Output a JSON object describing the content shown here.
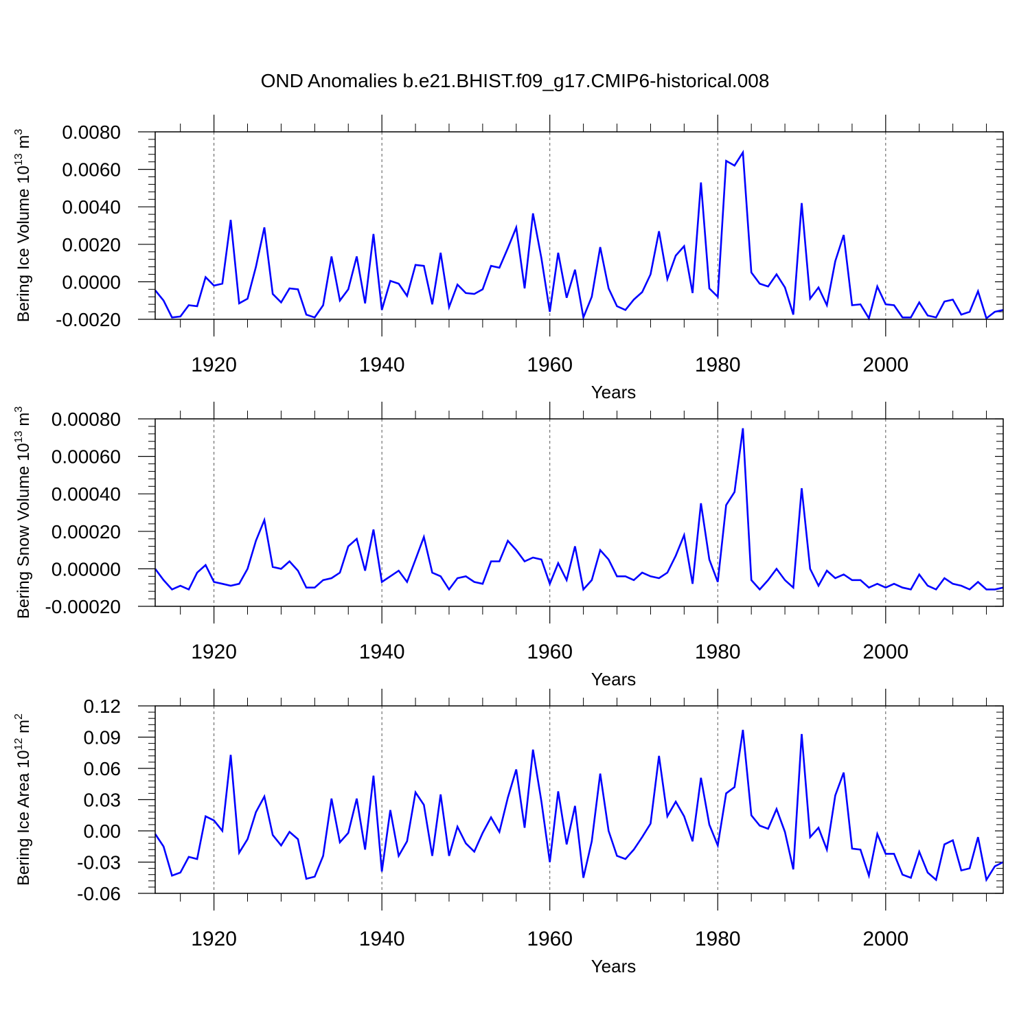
{
  "figure_title": "OND Anomalies b.e21.BHIST.f09_g17.CMIP6-historical.008",
  "line_color": "#0000ff",
  "chart_data": [
    {
      "type": "line",
      "ylabel": "Bering Ice Volume 10",
      "ylabel_exp": "13",
      "ylabel_unit": " m",
      "ylabel_unit_exp": "3",
      "xlabel": "Years",
      "xlim": [
        1913,
        2014
      ],
      "ylim": [
        -0.002,
        0.008
      ],
      "x_ticks": [
        1920,
        1940,
        1960,
        1980,
        2000
      ],
      "x_tick_labels": [
        "1920",
        "1940",
        "1960",
        "1980",
        "2000"
      ],
      "y_ticks": [
        -0.002,
        0.0,
        0.002,
        0.004,
        0.006,
        0.008
      ],
      "y_tick_labels": [
        "-0.0020",
        "0.0000",
        "0.0020",
        "0.0040",
        "0.0060",
        "0.0080"
      ],
      "grid": "dashed vertical at major x ticks",
      "x": [
        1913,
        1914,
        1915,
        1916,
        1917,
        1918,
        1919,
        1920,
        1921,
        1922,
        1923,
        1924,
        1925,
        1926,
        1927,
        1928,
        1929,
        1930,
        1931,
        1932,
        1933,
        1934,
        1935,
        1936,
        1937,
        1938,
        1939,
        1940,
        1941,
        1942,
        1943,
        1944,
        1945,
        1946,
        1947,
        1948,
        1949,
        1950,
        1951,
        1952,
        1953,
        1954,
        1955,
        1956,
        1957,
        1958,
        1959,
        1960,
        1961,
        1962,
        1963,
        1964,
        1965,
        1966,
        1967,
        1968,
        1969,
        1970,
        1971,
        1972,
        1973,
        1974,
        1975,
        1976,
        1977,
        1978,
        1979,
        1980,
        1981,
        1982,
        1983,
        1984,
        1985,
        1986,
        1987,
        1988,
        1989,
        1990,
        1991,
        1992,
        1993,
        1994,
        1995,
        1996,
        1997,
        1998,
        1999,
        2000,
        2001,
        2002,
        2003,
        2004,
        2005,
        2006,
        2007,
        2008,
        2009,
        2010,
        2011,
        2012,
        2013,
        2014
      ],
      "values": [
        -0.00045,
        -0.001,
        -0.0019,
        -0.00185,
        -0.00125,
        -0.0013,
        0.00025,
        -0.0002,
        -0.0001,
        0.0033,
        -0.00115,
        -0.0009,
        0.0008,
        0.0029,
        -0.00065,
        -0.0011,
        -0.00035,
        -0.0004,
        -0.00175,
        -0.0019,
        -0.00125,
        0.00135,
        -0.001,
        -0.0004,
        0.00135,
        -0.00115,
        0.00255,
        -0.0015,
        5e-05,
        -0.0001,
        -0.00075,
        0.0009,
        0.00085,
        -0.0012,
        0.00155,
        -0.00135,
        -0.00015,
        -0.0006,
        -0.00065,
        -0.0004,
        0.00085,
        0.00075,
        0.0018,
        0.0029,
        -0.00035,
        0.00365,
        0.00125,
        -0.0016,
        0.00155,
        -0.00085,
        0.00065,
        -0.0019,
        -0.0008,
        0.00185,
        -0.00035,
        -0.0013,
        -0.0015,
        -0.00095,
        -0.00055,
        0.0004,
        0.0027,
        0.00015,
        0.0014,
        0.0019,
        -0.0006,
        0.0053,
        -0.00035,
        -0.0008,
        0.00645,
        0.0062,
        0.0069,
        0.0005,
        -0.0001,
        -0.00025,
        0.0004,
        -0.0003,
        -0.00175,
        0.0042,
        -0.0009,
        -0.0003,
        -0.00125,
        0.0011,
        0.0025,
        -0.00125,
        -0.0012,
        -0.00195,
        -0.00025,
        -0.0012,
        -0.00125,
        -0.0019,
        -0.0019,
        -0.0011,
        -0.0018,
        -0.0019,
        -0.00105,
        -0.00095,
        -0.00175,
        -0.0016,
        -0.0005,
        -0.00195,
        -0.0016,
        -0.0015
      ]
    },
    {
      "type": "line",
      "ylabel": "Bering Snow Volume 10",
      "ylabel_exp": "13",
      "ylabel_unit": " m",
      "ylabel_unit_exp": "3",
      "xlabel": "Years",
      "xlim": [
        1913,
        2014
      ],
      "ylim": [
        -0.0002,
        0.0008
      ],
      "x_ticks": [
        1920,
        1940,
        1960,
        1980,
        2000
      ],
      "x_tick_labels": [
        "1920",
        "1940",
        "1960",
        "1980",
        "2000"
      ],
      "y_ticks": [
        -0.0002,
        0.0,
        0.0002,
        0.0004,
        0.0006,
        0.0008
      ],
      "y_tick_labels": [
        "-0.00020",
        "0.00000",
        "0.00020",
        "0.00040",
        "0.00060",
        "0.00080"
      ],
      "grid": "dashed vertical at major x ticks",
      "x": [
        1913,
        1914,
        1915,
        1916,
        1917,
        1918,
        1919,
        1920,
        1921,
        1922,
        1923,
        1924,
        1925,
        1926,
        1927,
        1928,
        1929,
        1930,
        1931,
        1932,
        1933,
        1934,
        1935,
        1936,
        1937,
        1938,
        1939,
        1940,
        1941,
        1942,
        1943,
        1944,
        1945,
        1946,
        1947,
        1948,
        1949,
        1950,
        1951,
        1952,
        1953,
        1954,
        1955,
        1956,
        1957,
        1958,
        1959,
        1960,
        1961,
        1962,
        1963,
        1964,
        1965,
        1966,
        1967,
        1968,
        1969,
        1970,
        1971,
        1972,
        1973,
        1974,
        1975,
        1976,
        1977,
        1978,
        1979,
        1980,
        1981,
        1982,
        1983,
        1984,
        1985,
        1986,
        1987,
        1988,
        1989,
        1990,
        1991,
        1992,
        1993,
        1994,
        1995,
        1996,
        1997,
        1998,
        1999,
        2000,
        2001,
        2002,
        2003,
        2004,
        2005,
        2006,
        2007,
        2008,
        2009,
        2010,
        2011,
        2012,
        2013,
        2014
      ],
      "values": [
        0.0,
        -6e-05,
        -0.00011,
        -9e-05,
        -0.00011,
        -2e-05,
        2e-05,
        -7e-05,
        -8e-05,
        -9e-05,
        -8e-05,
        0.0,
        0.00015,
        0.00026,
        1e-05,
        0.0,
        4e-05,
        -1e-05,
        -0.0001,
        -0.0001,
        -6e-05,
        -5e-05,
        -2e-05,
        0.00012,
        0.00016,
        -1e-05,
        0.00021,
        -7e-05,
        -4e-05,
        -1e-05,
        -7e-05,
        5e-05,
        0.00017,
        -2e-05,
        -4e-05,
        -0.00011,
        -5e-05,
        -4e-05,
        -7e-05,
        -8e-05,
        4e-05,
        4e-05,
        0.00015,
        0.0001,
        4e-05,
        6e-05,
        5e-05,
        -8e-05,
        3e-05,
        -6e-05,
        0.00012,
        -0.00011,
        -6e-05,
        0.0001,
        5e-05,
        -4e-05,
        -4e-05,
        -6e-05,
        -2e-05,
        -4e-05,
        -5e-05,
        -2e-05,
        7e-05,
        0.00018,
        -8e-05,
        0.00035,
        5e-05,
        -7e-05,
        0.00034,
        0.00041,
        0.00075,
        -6e-05,
        -0.00011,
        -6e-05,
        0.0,
        -6e-05,
        -0.0001,
        0.00043,
        0.0,
        -9e-05,
        -1e-05,
        -5e-05,
        -3e-05,
        -6e-05,
        -6e-05,
        -0.0001,
        -8e-05,
        -0.0001,
        -8e-05,
        -0.0001,
        -0.00011,
        -3e-05,
        -9e-05,
        -0.00011,
        -5e-05,
        -8e-05,
        -9e-05,
        -0.00011,
        -7e-05,
        -0.00011,
        -0.00011,
        -0.0001
      ]
    },
    {
      "type": "line",
      "ylabel": "Bering Ice Area 10",
      "ylabel_exp": "12",
      "ylabel_unit": " m",
      "ylabel_unit_exp": "2",
      "xlabel": "Years",
      "xlim": [
        1913,
        2014
      ],
      "ylim": [
        -0.06,
        0.12
      ],
      "x_ticks": [
        1920,
        1940,
        1960,
        1980,
        2000
      ],
      "x_tick_labels": [
        "1920",
        "1940",
        "1960",
        "1980",
        "2000"
      ],
      "y_ticks": [
        -0.06,
        -0.03,
        0.0,
        0.03,
        0.06,
        0.09,
        0.12
      ],
      "y_tick_labels": [
        "-0.06",
        "-0.03",
        "0.00",
        "0.03",
        "0.06",
        "0.09",
        "0.12"
      ],
      "grid": "dashed vertical at major x ticks",
      "x": [
        1913,
        1914,
        1915,
        1916,
        1917,
        1918,
        1919,
        1920,
        1921,
        1922,
        1923,
        1924,
        1925,
        1926,
        1927,
        1928,
        1929,
        1930,
        1931,
        1932,
        1933,
        1934,
        1935,
        1936,
        1937,
        1938,
        1939,
        1940,
        1941,
        1942,
        1943,
        1944,
        1945,
        1946,
        1947,
        1948,
        1949,
        1950,
        1951,
        1952,
        1953,
        1954,
        1955,
        1956,
        1957,
        1958,
        1959,
        1960,
        1961,
        1962,
        1963,
        1964,
        1965,
        1966,
        1967,
        1968,
        1969,
        1970,
        1971,
        1972,
        1973,
        1974,
        1975,
        1976,
        1977,
        1978,
        1979,
        1980,
        1981,
        1982,
        1983,
        1984,
        1985,
        1986,
        1987,
        1988,
        1989,
        1990,
        1991,
        1992,
        1993,
        1994,
        1995,
        1996,
        1997,
        1998,
        1999,
        2000,
        2001,
        2002,
        2003,
        2004,
        2005,
        2006,
        2007,
        2008,
        2009,
        2010,
        2011,
        2012,
        2013,
        2014
      ],
      "values": [
        -0.003,
        -0.015,
        -0.043,
        -0.04,
        -0.025,
        -0.027,
        0.014,
        0.01,
        0.0,
        0.073,
        -0.021,
        -0.008,
        0.018,
        0.033,
        -0.004,
        -0.014,
        -0.001,
        -0.008,
        -0.046,
        -0.044,
        -0.024,
        0.031,
        -0.011,
        -0.002,
        0.031,
        -0.018,
        0.053,
        -0.039,
        0.02,
        -0.024,
        -0.01,
        0.037,
        0.025,
        -0.024,
        0.035,
        -0.024,
        0.004,
        -0.012,
        -0.02,
        -0.002,
        0.013,
        -0.001,
        0.032,
        0.059,
        0.003,
        0.078,
        0.028,
        -0.03,
        0.038,
        -0.013,
        0.024,
        -0.045,
        -0.01,
        0.055,
        0.0,
        -0.024,
        -0.027,
        -0.018,
        -0.006,
        0.007,
        0.072,
        0.014,
        0.028,
        0.014,
        -0.01,
        0.051,
        0.006,
        -0.014,
        0.036,
        0.042,
        0.097,
        0.015,
        0.005,
        0.002,
        0.021,
        -0.001,
        -0.037,
        0.093,
        -0.006,
        0.003,
        -0.018,
        0.034,
        0.056,
        -0.017,
        -0.018,
        -0.043,
        -0.003,
        -0.022,
        -0.022,
        -0.042,
        -0.045,
        -0.02,
        -0.04,
        -0.047,
        -0.013,
        -0.009,
        -0.038,
        -0.036,
        -0.006,
        -0.047,
        -0.034,
        -0.03
      ]
    }
  ]
}
